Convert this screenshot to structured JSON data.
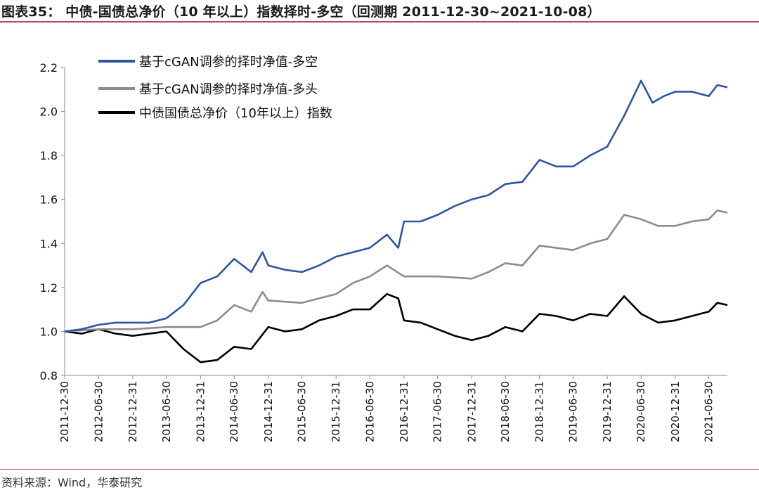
{
  "title": "图表35：  中债-国债总净价（10 年以上）指数择时-多空（回测期 2011-12-30~2021-10-08）",
  "source": "资料来源：Wind，华泰研究",
  "chart_data": {
    "type": "line",
    "ylim": [
      0.8,
      2.2
    ],
    "yticks": [
      "0.8",
      "1.0",
      "1.2",
      "1.4",
      "1.6",
      "1.8",
      "2.0",
      "2.2"
    ],
    "x_tick_labels": [
      "2011-12-30",
      "2012-06-30",
      "2012-12-31",
      "2013-06-30",
      "2013-12-31",
      "2014-06-30",
      "2014-12-31",
      "2015-06-30",
      "2015-12-31",
      "2016-06-30",
      "2016-12-31",
      "2017-06-30",
      "2017-12-31",
      "2018-06-30",
      "2018-12-31",
      "2019-06-30",
      "2019-12-31",
      "2020-06-30",
      "2020-12-31",
      "2021-06-30"
    ],
    "legend_position": "top-left",
    "series": [
      {
        "name": "基于cGAN调参的择时净值-多空",
        "color": "#2e55a0",
        "points": [
          [
            "2011-12-30",
            1.0
          ],
          [
            "2012-03-31",
            1.01
          ],
          [
            "2012-06-30",
            1.03
          ],
          [
            "2012-09-30",
            1.04
          ],
          [
            "2012-12-31",
            1.04
          ],
          [
            "2013-03-31",
            1.04
          ],
          [
            "2013-06-30",
            1.06
          ],
          [
            "2013-09-30",
            1.12
          ],
          [
            "2013-12-31",
            1.22
          ],
          [
            "2014-03-31",
            1.25
          ],
          [
            "2014-06-30",
            1.33
          ],
          [
            "2014-09-30",
            1.27
          ],
          [
            "2014-11-30",
            1.36
          ],
          [
            "2014-12-31",
            1.3
          ],
          [
            "2015-03-31",
            1.28
          ],
          [
            "2015-06-30",
            1.27
          ],
          [
            "2015-09-30",
            1.3
          ],
          [
            "2015-12-31",
            1.34
          ],
          [
            "2016-03-31",
            1.36
          ],
          [
            "2016-06-30",
            1.38
          ],
          [
            "2016-09-30",
            1.44
          ],
          [
            "2016-11-30",
            1.38
          ],
          [
            "2016-12-31",
            1.5
          ],
          [
            "2017-03-31",
            1.5
          ],
          [
            "2017-06-30",
            1.53
          ],
          [
            "2017-09-30",
            1.57
          ],
          [
            "2017-12-31",
            1.6
          ],
          [
            "2018-03-31",
            1.62
          ],
          [
            "2018-06-30",
            1.67
          ],
          [
            "2018-09-30",
            1.68
          ],
          [
            "2018-12-31",
            1.78
          ],
          [
            "2019-03-31",
            1.75
          ],
          [
            "2019-06-30",
            1.75
          ],
          [
            "2019-09-30",
            1.8
          ],
          [
            "2019-12-31",
            1.84
          ],
          [
            "2020-03-31",
            1.98
          ],
          [
            "2020-06-30",
            2.14
          ],
          [
            "2020-08-31",
            2.04
          ],
          [
            "2020-10-31",
            2.07
          ],
          [
            "2020-12-31",
            2.09
          ],
          [
            "2021-03-31",
            2.09
          ],
          [
            "2021-06-30",
            2.07
          ],
          [
            "2021-08-15",
            2.12
          ],
          [
            "2021-10-08",
            2.11
          ]
        ]
      },
      {
        "name": "基于cGAN调参的择时净值-多头",
        "color": "#8c8c8c",
        "points": [
          [
            "2011-12-30",
            1.0
          ],
          [
            "2012-06-30",
            1.01
          ],
          [
            "2012-12-31",
            1.01
          ],
          [
            "2013-06-30",
            1.02
          ],
          [
            "2013-12-31",
            1.02
          ],
          [
            "2014-03-31",
            1.05
          ],
          [
            "2014-06-30",
            1.12
          ],
          [
            "2014-09-30",
            1.09
          ],
          [
            "2014-11-30",
            1.18
          ],
          [
            "2014-12-31",
            1.14
          ],
          [
            "2015-06-30",
            1.13
          ],
          [
            "2015-12-31",
            1.17
          ],
          [
            "2016-03-31",
            1.22
          ],
          [
            "2016-06-30",
            1.25
          ],
          [
            "2016-09-30",
            1.3
          ],
          [
            "2016-12-31",
            1.25
          ],
          [
            "2017-06-30",
            1.25
          ],
          [
            "2017-12-31",
            1.24
          ],
          [
            "2018-03-31",
            1.27
          ],
          [
            "2018-06-30",
            1.31
          ],
          [
            "2018-09-30",
            1.3
          ],
          [
            "2018-12-31",
            1.39
          ],
          [
            "2019-06-30",
            1.37
          ],
          [
            "2019-09-30",
            1.4
          ],
          [
            "2019-12-31",
            1.42
          ],
          [
            "2020-03-31",
            1.53
          ],
          [
            "2020-06-30",
            1.51
          ],
          [
            "2020-09-30",
            1.48
          ],
          [
            "2020-12-31",
            1.48
          ],
          [
            "2021-03-31",
            1.5
          ],
          [
            "2021-06-30",
            1.51
          ],
          [
            "2021-08-15",
            1.55
          ],
          [
            "2021-10-08",
            1.54
          ]
        ]
      },
      {
        "name": "中债国债总净价（10年以上）指数",
        "color": "#000000",
        "points": [
          [
            "2011-12-30",
            1.0
          ],
          [
            "2012-03-31",
            0.99
          ],
          [
            "2012-06-30",
            1.01
          ],
          [
            "2012-09-30",
            0.99
          ],
          [
            "2012-12-31",
            0.98
          ],
          [
            "2013-03-31",
            0.99
          ],
          [
            "2013-06-30",
            1.0
          ],
          [
            "2013-09-30",
            0.92
          ],
          [
            "2013-12-31",
            0.86
          ],
          [
            "2014-03-31",
            0.87
          ],
          [
            "2014-06-30",
            0.93
          ],
          [
            "2014-09-30",
            0.92
          ],
          [
            "2014-12-31",
            1.02
          ],
          [
            "2015-03-31",
            1.0
          ],
          [
            "2015-06-30",
            1.01
          ],
          [
            "2015-09-30",
            1.05
          ],
          [
            "2015-12-31",
            1.07
          ],
          [
            "2016-03-31",
            1.1
          ],
          [
            "2016-06-30",
            1.1
          ],
          [
            "2016-09-30",
            1.17
          ],
          [
            "2016-11-30",
            1.15
          ],
          [
            "2016-12-31",
            1.05
          ],
          [
            "2017-03-31",
            1.04
          ],
          [
            "2017-06-30",
            1.01
          ],
          [
            "2017-09-30",
            0.98
          ],
          [
            "2017-12-31",
            0.96
          ],
          [
            "2018-03-31",
            0.98
          ],
          [
            "2018-06-30",
            1.02
          ],
          [
            "2018-09-30",
            1.0
          ],
          [
            "2018-12-31",
            1.08
          ],
          [
            "2019-03-31",
            1.07
          ],
          [
            "2019-06-30",
            1.05
          ],
          [
            "2019-09-30",
            1.08
          ],
          [
            "2019-12-31",
            1.07
          ],
          [
            "2020-03-31",
            1.16
          ],
          [
            "2020-06-30",
            1.08
          ],
          [
            "2020-09-30",
            1.04
          ],
          [
            "2020-12-31",
            1.05
          ],
          [
            "2021-03-31",
            1.07
          ],
          [
            "2021-06-30",
            1.09
          ],
          [
            "2021-08-15",
            1.13
          ],
          [
            "2021-10-08",
            1.12
          ]
        ]
      }
    ]
  }
}
